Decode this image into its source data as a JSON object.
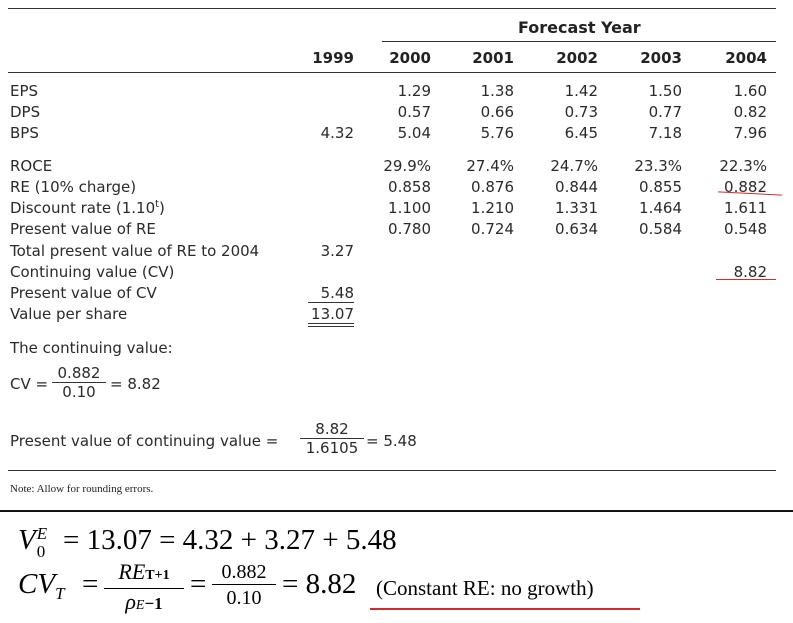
{
  "table": {
    "forecast_header": "Forecast Year",
    "years": [
      "1999",
      "2000",
      "2001",
      "2002",
      "2003",
      "2004"
    ],
    "rows": [
      {
        "label": "EPS",
        "values": [
          "",
          "1.29",
          "1.38",
          "1.42",
          "1.50",
          "1.60"
        ]
      },
      {
        "label": "DPS",
        "values": [
          "",
          "0.57",
          "0.66",
          "0.73",
          "0.77",
          "0.82"
        ]
      },
      {
        "label": "BPS",
        "values": [
          "4.32",
          "5.04",
          "5.76",
          "6.45",
          "7.18",
          "7.96"
        ]
      },
      {
        "label": "ROCE",
        "values": [
          "",
          "29.9%",
          "27.4%",
          "24.7%",
          "23.3%",
          "22.3%"
        ]
      },
      {
        "label": "RE (10% charge)",
        "values": [
          "",
          "0.858",
          "0.876",
          "0.844",
          "0.855",
          "0.882"
        ]
      },
      {
        "label": "Discount rate (1.10",
        "label_sup": "t",
        "label_end": ")",
        "values": [
          "",
          "1.100",
          "1.210",
          "1.331",
          "1.464",
          "1.611"
        ]
      },
      {
        "label": "Present value of RE",
        "values": [
          "",
          "0.780",
          "0.724",
          "0.634",
          "0.584",
          "0.548"
        ]
      },
      {
        "label": "Total present value of RE to 2004",
        "values": [
          "3.27",
          "",
          "",
          "",
          "",
          ""
        ]
      },
      {
        "label": "Continuing value (CV)",
        "values": [
          "",
          "",
          "",
          "",
          "",
          "8.82"
        ]
      },
      {
        "label": "Present value of CV",
        "values": [
          "5.48",
          "",
          "",
          "",
          "",
          ""
        ]
      },
      {
        "label": "Value per share",
        "values": [
          "13.07",
          "",
          "",
          "",
          "",
          ""
        ]
      }
    ]
  },
  "cv_section": {
    "heading": "The continuing value:",
    "cv_prefix": "CV =",
    "cv_num": "0.882",
    "cv_den": "0.10",
    "cv_result": "= 8.82",
    "pv_prefix": "Present value of continuing value =",
    "pv_num": "8.82",
    "pv_den": "1.6105",
    "pv_result": "= 5.48"
  },
  "note": "Note: Allow for rounding errors.",
  "handwritten": {
    "line1_v": "V",
    "line1_sup": "E",
    "line1_sub": "0",
    "line1_rest": "= 13.07 = 4.32 + 3.27 + 5.48",
    "line2_cv": "CV",
    "line2_sub": "T",
    "line2_eq1": "=",
    "line2_num": "RE",
    "line2_num_sub": "T+1",
    "line2_den": "ρ",
    "line2_den_sub": "E",
    "line2_den_rest": "−1",
    "line2_eq2": "=",
    "line2_num2": "0.882",
    "line2_den2": "0.10",
    "line2_result": "= 8.82",
    "line2_note": "(Constant RE: no growth)"
  },
  "colors": {
    "annotation_red": "#d32b2b",
    "rule": "#333333"
  }
}
